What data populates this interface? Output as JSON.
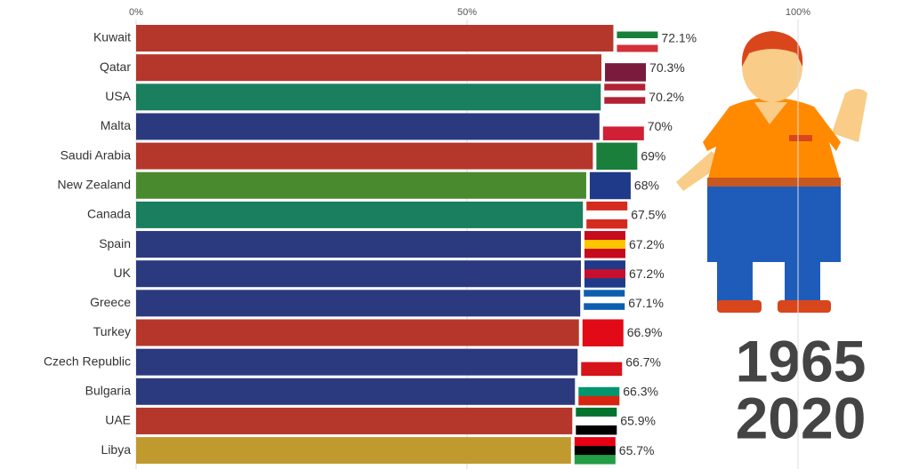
{
  "chart_data": {
    "type": "bar",
    "orientation": "horizontal",
    "categories": [
      "Kuwait",
      "Qatar",
      "USA",
      "Malta",
      "Saudi Arabia",
      "New Zealand",
      "Canada",
      "Spain",
      "UK",
      "Greece",
      "Turkey",
      "Czech Republic",
      "Bulgaria",
      "UAE",
      "Libya"
    ],
    "values": [
      72.1,
      70.3,
      70.2,
      70,
      69,
      68,
      67.5,
      67.2,
      67.2,
      67.1,
      66.9,
      66.7,
      66.3,
      65.9,
      65.7
    ],
    "value_labels": [
      "72.1%",
      "70.3%",
      "70.2%",
      "70%",
      "69%",
      "68%",
      "67.5%",
      "67.2%",
      "67.2%",
      "67.1%",
      "66.9%",
      "66.7%",
      "66.3%",
      "65.9%",
      "65.7%"
    ],
    "colors": [
      "#b5372b",
      "#b5372b",
      "#1a7f5e",
      "#2b3a7f",
      "#b5372b",
      "#4a8a2e",
      "#1a7f5e",
      "#2b3a7f",
      "#2b3a7f",
      "#2b3a7f",
      "#b5372b",
      "#2b3a7f",
      "#2b3a7f",
      "#b5372b",
      "#c09a2f"
    ],
    "xlim": [
      0,
      100
    ],
    "xticks": [
      {
        "value": 0,
        "label": "0%"
      },
      {
        "value": 50,
        "label": "50%"
      },
      {
        "value": 100,
        "label": "100%"
      }
    ],
    "grid": true,
    "annotations": [
      "1965",
      "2020"
    ]
  }
}
